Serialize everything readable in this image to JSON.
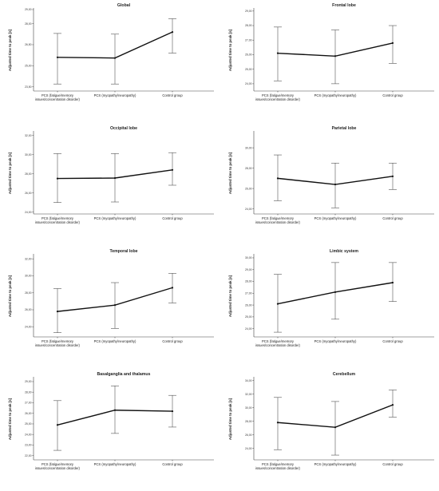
{
  "figure": {
    "ylabel": "Adjusted time to peak [s]",
    "categories": [
      "PCS (fatigue/memory issues/concentration disorder)",
      "PCS (myopathy/neuropathy)",
      "Control group"
    ]
  },
  "chart_data": [
    {
      "type": "line",
      "title": "Global",
      "ylabel": "Adjusted time to peak [s]",
      "categories": [
        "PCS (fatigue/memory issues/concentration disorder)",
        "PCS (myopathy/neuropathy)",
        "Control group"
      ],
      "values": [
        25.6,
        25.55,
        27.4
      ],
      "error_low": [
        23.7,
        23.7,
        25.9
      ],
      "error_high": [
        27.3,
        27.25,
        28.35
      ],
      "ylim": [
        23.2,
        29.0
      ],
      "yticks": [
        "23,50",
        "25,00",
        "26,50",
        "28,00",
        "29,00"
      ],
      "ytick_values": [
        23.5,
        25.0,
        26.5,
        28.0,
        29.0
      ]
    },
    {
      "type": "line",
      "title": "Frontal lobe",
      "ylabel": "Adjusted time to peak [s]",
      "categories": [
        "PCS (fatigue/memory issues/concentration disorder)",
        "PCS (myopathy/neuropathy)",
        "Control group"
      ],
      "values": [
        26.1,
        25.9,
        26.8
      ],
      "error_low": [
        24.2,
        24.0,
        25.4
      ],
      "error_high": [
        27.9,
        27.7,
        28.0
      ],
      "ylim": [
        23.5,
        29.1
      ],
      "yticks": [
        "24,00",
        "25,00",
        "26,00",
        "27,00",
        "28,00",
        "29,00"
      ],
      "ytick_values": [
        24.0,
        25.0,
        26.0,
        27.0,
        28.0,
        29.0
      ]
    },
    {
      "type": "line",
      "title": "Occipital lobe",
      "ylabel": "Adjusted time to peak [s]",
      "categories": [
        "PCS (fatigue/memory issues/concentration disorder)",
        "PCS (myopathy/neuropathy)",
        "Control group"
      ],
      "values": [
        27.5,
        27.55,
        28.4
      ],
      "error_low": [
        25.0,
        25.05,
        26.8
      ],
      "error_high": [
        30.1,
        30.1,
        30.2
      ],
      "ylim": [
        23.8,
        32.3
      ],
      "yticks": [
        "24,00",
        "26,00",
        "28,00",
        "30,00",
        "32,00"
      ],
      "ytick_values": [
        24.0,
        26.0,
        28.0,
        30.0,
        32.0
      ]
    },
    {
      "type": "line",
      "title": "Parietal lobe",
      "ylabel": "Adjusted time to peak [s]",
      "categories": [
        "PCS (fatigue/memory issues/concentration disorder)",
        "PCS (myopathy/neuropathy)",
        "Control group"
      ],
      "values": [
        27.0,
        26.4,
        27.2
      ],
      "error_low": [
        24.8,
        24.1,
        25.9
      ],
      "error_high": [
        29.3,
        28.5,
        28.5
      ],
      "ylim": [
        23.5,
        31.5
      ],
      "yticks": [
        "24,00",
        "26,00",
        "28,00",
        "30,00"
      ],
      "ytick_values": [
        24.0,
        26.0,
        28.0,
        30.0
      ]
    },
    {
      "type": "line",
      "title": "Temporal lobe",
      "ylabel": "Adjusted time to peak [s]",
      "categories": [
        "PCS (fatigue/memory issues/concentration disorder)",
        "PCS (myopathy/neuropathy)",
        "Control group"
      ],
      "values": [
        25.8,
        26.55,
        28.6
      ],
      "error_low": [
        23.3,
        23.8,
        26.8
      ],
      "error_high": [
        28.5,
        29.2,
        30.3
      ],
      "ylim": [
        22.8,
        32.4
      ],
      "yticks": [
        "24,00",
        "26,00",
        "28,00",
        "30,00",
        "32,00"
      ],
      "ytick_values": [
        24.0,
        26.0,
        28.0,
        30.0,
        32.0
      ]
    },
    {
      "type": "line",
      "title": "Limbic system",
      "ylabel": "Adjusted time to peak [s]",
      "categories": [
        "PCS (fatigue/memory issues/concentration disorder)",
        "PCS (myopathy/neuropathy)",
        "Control group"
      ],
      "values": [
        26.1,
        27.1,
        27.9
      ],
      "error_low": [
        23.7,
        24.8,
        26.3
      ],
      "error_high": [
        28.6,
        29.6,
        29.6
      ],
      "ylim": [
        23.3,
        30.2
      ],
      "yticks": [
        "24,00",
        "25,00",
        "26,00",
        "27,00",
        "28,00",
        "29,00",
        "30,00"
      ],
      "ytick_values": [
        24.0,
        25.0,
        26.0,
        27.0,
        28.0,
        29.0,
        30.0
      ]
    },
    {
      "type": "line",
      "title": "Basalganglia and thalamus",
      "ylabel": "Adjusted time to peak [s]",
      "categories": [
        "PCS (fatigue/memory issues/concentration disorder)",
        "PCS (myopathy/neuropathy)",
        "Control group"
      ],
      "values": [
        24.9,
        26.3,
        26.2
      ],
      "error_low": [
        22.5,
        24.1,
        24.7
      ],
      "error_high": [
        27.2,
        28.6,
        27.7
      ],
      "ylim": [
        21.6,
        29.3
      ],
      "yticks": [
        "22,00",
        "23,00",
        "24,00",
        "25,00",
        "26,00",
        "27,00",
        "28,00",
        "29,00"
      ],
      "ytick_values": [
        22.0,
        23.0,
        24.0,
        25.0,
        26.0,
        27.0,
        28.0,
        29.0
      ]
    },
    {
      "type": "line",
      "title": "Cerebellum",
      "ylabel": "Adjusted time to peak [s]",
      "categories": [
        "PCS (fatigue/memory issues/concentration disorder)",
        "PCS (myopathy/neuropathy)",
        "Control group"
      ],
      "values": [
        27.8,
        27.1,
        30.4
      ],
      "error_low": [
        23.8,
        23.0,
        28.6
      ],
      "error_high": [
        31.5,
        30.9,
        32.6
      ],
      "ylim": [
        22.3,
        34.3
      ],
      "yticks": [
        "24,00",
        "26,00",
        "28,00",
        "30,00",
        "32,00",
        "34,00"
      ],
      "ytick_values": [
        24.0,
        26.0,
        28.0,
        30.0,
        32.0,
        34.0
      ]
    }
  ]
}
